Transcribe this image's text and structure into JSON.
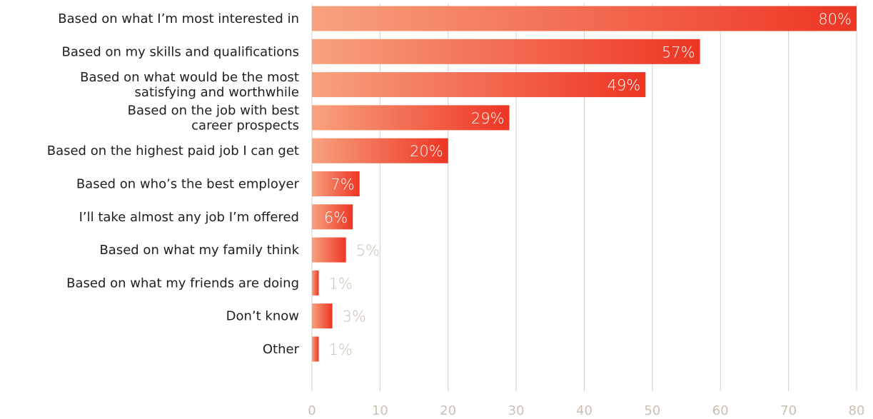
{
  "chart_data": {
    "type": "bar",
    "orientation": "horizontal",
    "categories": [
      [
        "Based on what I’m most interested in"
      ],
      [
        "Based on my skills and qualifications"
      ],
      [
        "Based on what would be the most",
        "satisfying and worthwhile"
      ],
      [
        "Based on the job with best",
        "career prospects"
      ],
      [
        "Based on the highest paid job I can get"
      ],
      [
        "Based on who’s the best employer"
      ],
      [
        "I’ll take almost any job I’m offered"
      ],
      [
        "Based on what my family think"
      ],
      [
        "Based on what my friends are doing"
      ],
      [
        "Don’t know"
      ],
      [
        "Other"
      ]
    ],
    "values": [
      80,
      57,
      49,
      29,
      20,
      7,
      6,
      5,
      1,
      3,
      1
    ],
    "value_labels": [
      "80%",
      "57%",
      "49%",
      "29%",
      "20%",
      "7%",
      "6%",
      "5%",
      "1%",
      "3%",
      "1%"
    ],
    "label_inside": [
      true,
      true,
      true,
      true,
      true,
      true,
      true,
      false,
      false,
      false,
      false
    ],
    "x_ticks": [
      "0",
      "10",
      "20",
      "30",
      "40",
      "50",
      "60",
      "70",
      "80"
    ],
    "xlim": [
      0,
      80
    ],
    "title": "",
    "xlabel": "",
    "ylabel": "",
    "grid": "vertical",
    "legend": "none",
    "colors": {
      "bar_gradient_start": "#f7a27e",
      "bar_gradient_end": "#ee3524",
      "grid": "#d8cfc4",
      "tick_text": "#c9bfb2",
      "category_text": "#1f1f1f",
      "inside_label": "#ffffff"
    }
  }
}
